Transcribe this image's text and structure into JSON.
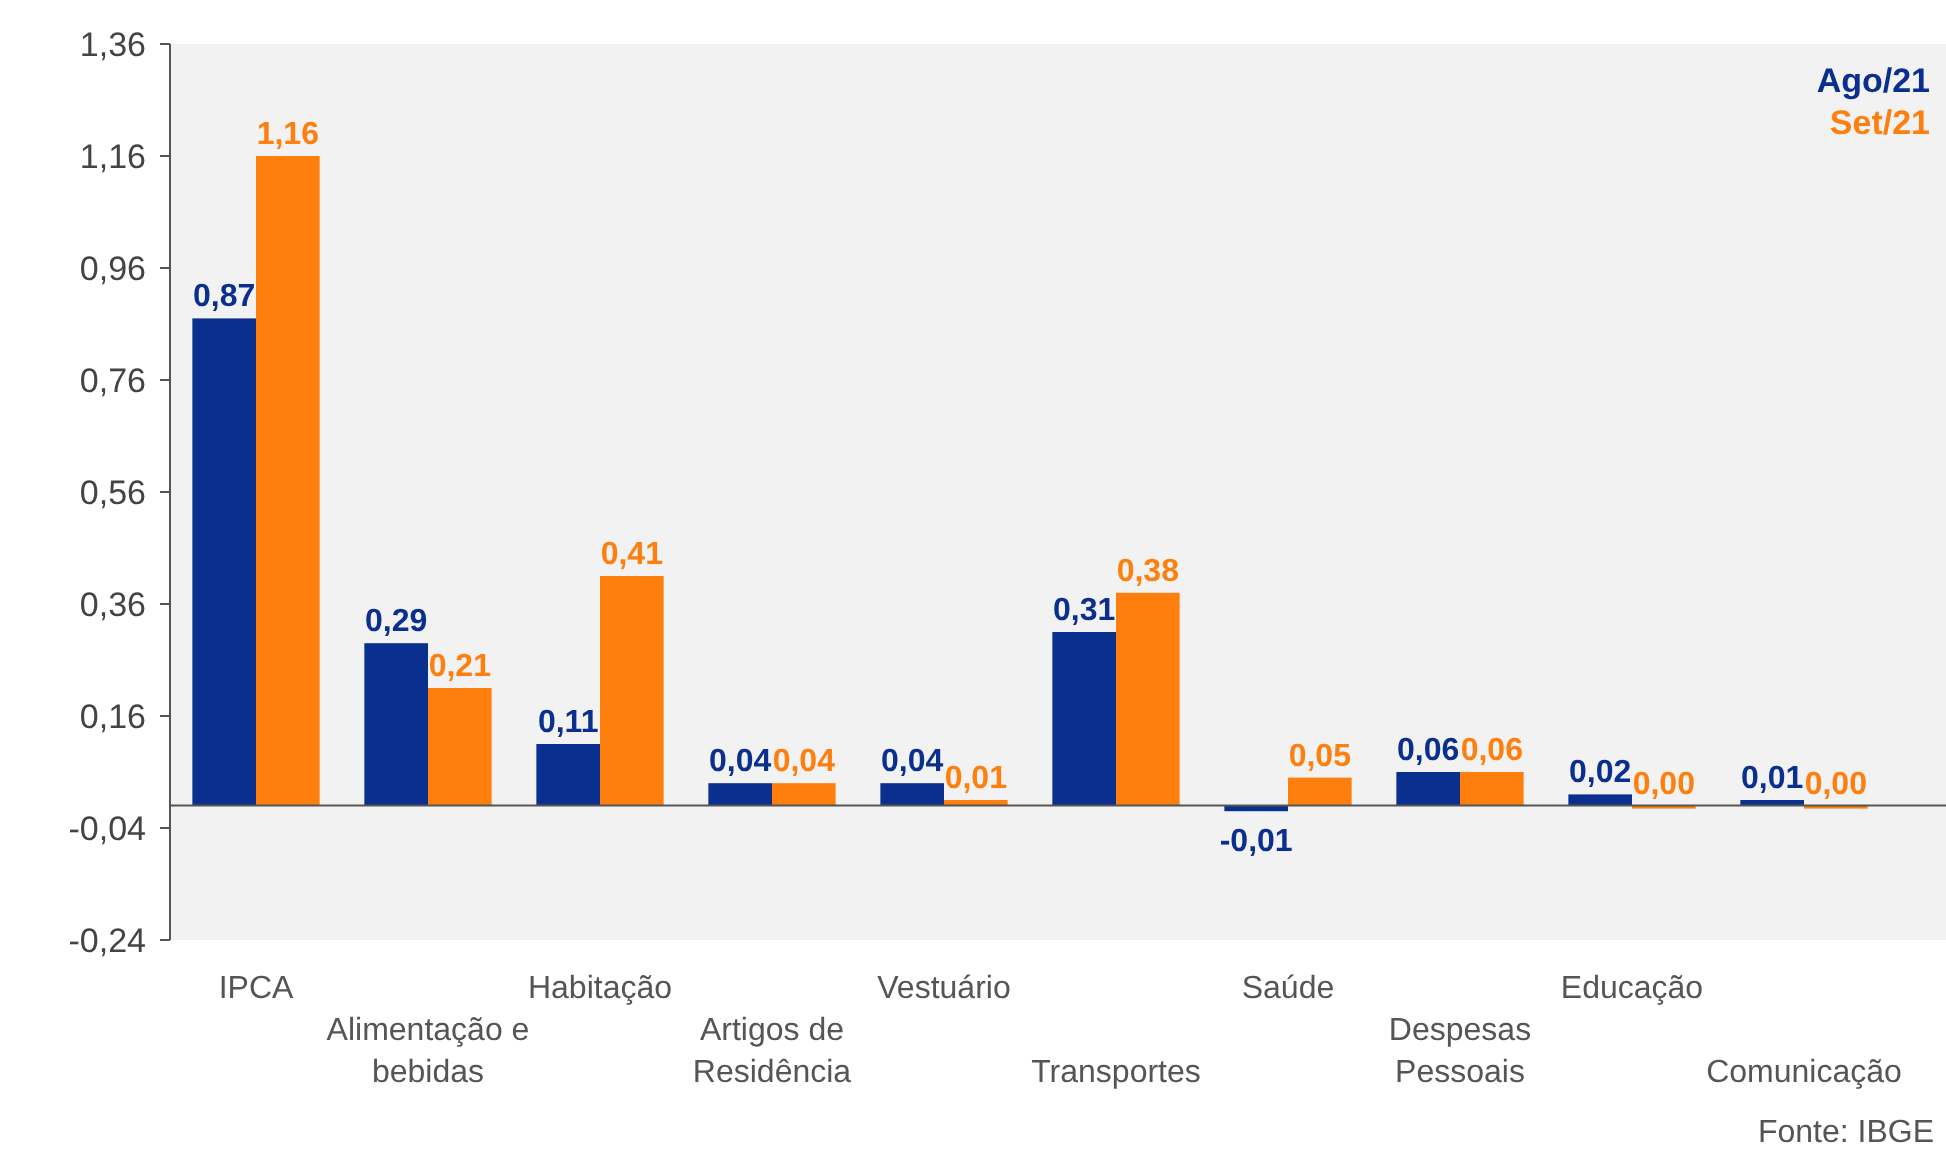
{
  "chart_data": {
    "type": "bar",
    "categories": [
      "IPCA",
      "Alimentação e bebidas",
      "Habitação",
      "Artigos de Residência",
      "Vestuário",
      "Transportes",
      "Saúde",
      "Despesas Pessoais",
      "Educação",
      "Comunicação"
    ],
    "series": [
      {
        "name": "Ago/21",
        "color": "#0a2f8f",
        "values": [
          0.87,
          0.29,
          0.11,
          0.04,
          0.04,
          0.31,
          -0.01,
          0.06,
          0.02,
          0.01
        ],
        "value_labels": [
          "0,87",
          "0,29",
          "0,11",
          "0,04",
          "0,04",
          "0,31",
          "-0,01",
          "0,06",
          "0,02",
          "0,01"
        ]
      },
      {
        "name": "Set/21",
        "color": "#ff7f0e",
        "values": [
          1.16,
          0.21,
          0.41,
          0.04,
          0.01,
          0.38,
          0.05,
          0.06,
          0.0,
          0.0
        ],
        "value_labels": [
          "1,16",
          "0,21",
          "0,41",
          "0,04",
          "0,01",
          "0,38",
          "0,05",
          "0,06",
          "0,00",
          "0,00"
        ]
      }
    ],
    "ylim": [
      -0.24,
      1.36
    ],
    "yticks": [
      {
        "value": -0.24,
        "label": "-0,24"
      },
      {
        "value": -0.04,
        "label": "-0,04"
      },
      {
        "value": 0.16,
        "label": "0,16"
      },
      {
        "value": 0.36,
        "label": "0,36"
      },
      {
        "value": 0.56,
        "label": "0,56"
      },
      {
        "value": 0.76,
        "label": "0,76"
      },
      {
        "value": 0.96,
        "label": "0,96"
      },
      {
        "value": 1.16,
        "label": "1,16"
      },
      {
        "value": 1.36,
        "label": "1,36"
      }
    ],
    "grid": false,
    "legend": "top right",
    "annotations": [
      "Fonte: IBGE"
    ]
  }
}
